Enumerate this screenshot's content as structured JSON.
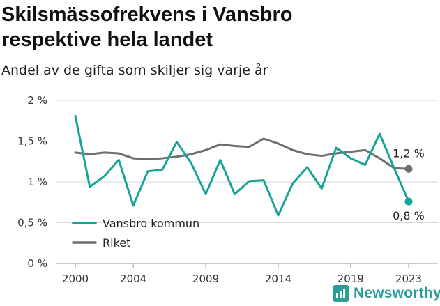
{
  "header": {
    "title_line1": "Skilsmässofrekvens i Vansbro",
    "title_line2": "respektive hela landet",
    "subtitle": "Andel av de gifta som skiljer sig varje år"
  },
  "brand": {
    "name": "Newsworthy",
    "icon": "newsworthy-logo-icon",
    "color": "#2b9f96"
  },
  "chart_data": {
    "type": "line",
    "title": "Skilsmässofrekvens i Vansbro respektive hela landet",
    "subtitle": "Andel av de gifta som skiljer sig varje år",
    "xlabel": "",
    "ylabel": "",
    "x": [
      2000,
      2001,
      2002,
      2003,
      2004,
      2005,
      2006,
      2007,
      2008,
      2009,
      2010,
      2011,
      2012,
      2013,
      2014,
      2015,
      2016,
      2017,
      2018,
      2019,
      2020,
      2021,
      2022,
      2023
    ],
    "x_ticks": [
      2000,
      2004,
      2009,
      2014,
      2019,
      2023
    ],
    "x_tick_labels": [
      "2000",
      "2004",
      "2009",
      "2014",
      "2019",
      "2023"
    ],
    "ylim": [
      0,
      2
    ],
    "y_ticks": [
      0,
      0.5,
      1,
      1.5,
      2
    ],
    "y_tick_labels": [
      "0 %",
      "0,5 %",
      "1 %",
      "1,5 %",
      "2 %"
    ],
    "grid": "horizontal",
    "legend_position": "bottom-left",
    "series": [
      {
        "name": "Vansbro kommun",
        "color": "#17a398",
        "end_label": "0,8 %",
        "values": [
          1.81,
          0.94,
          1.07,
          1.27,
          0.71,
          1.13,
          1.15,
          1.49,
          1.23,
          0.85,
          1.27,
          0.85,
          1.01,
          1.02,
          0.59,
          0.98,
          1.18,
          0.92,
          1.42,
          1.29,
          1.21,
          1.59,
          1.17,
          0.76
        ]
      },
      {
        "name": "Riket",
        "color": "#6e6e72",
        "end_label": "1,2 %",
        "values": [
          1.36,
          1.34,
          1.36,
          1.35,
          1.29,
          1.28,
          1.29,
          1.31,
          1.34,
          1.39,
          1.46,
          1.44,
          1.43,
          1.53,
          1.47,
          1.39,
          1.34,
          1.32,
          1.35,
          1.37,
          1.39,
          1.29,
          1.17,
          1.16
        ]
      }
    ]
  }
}
